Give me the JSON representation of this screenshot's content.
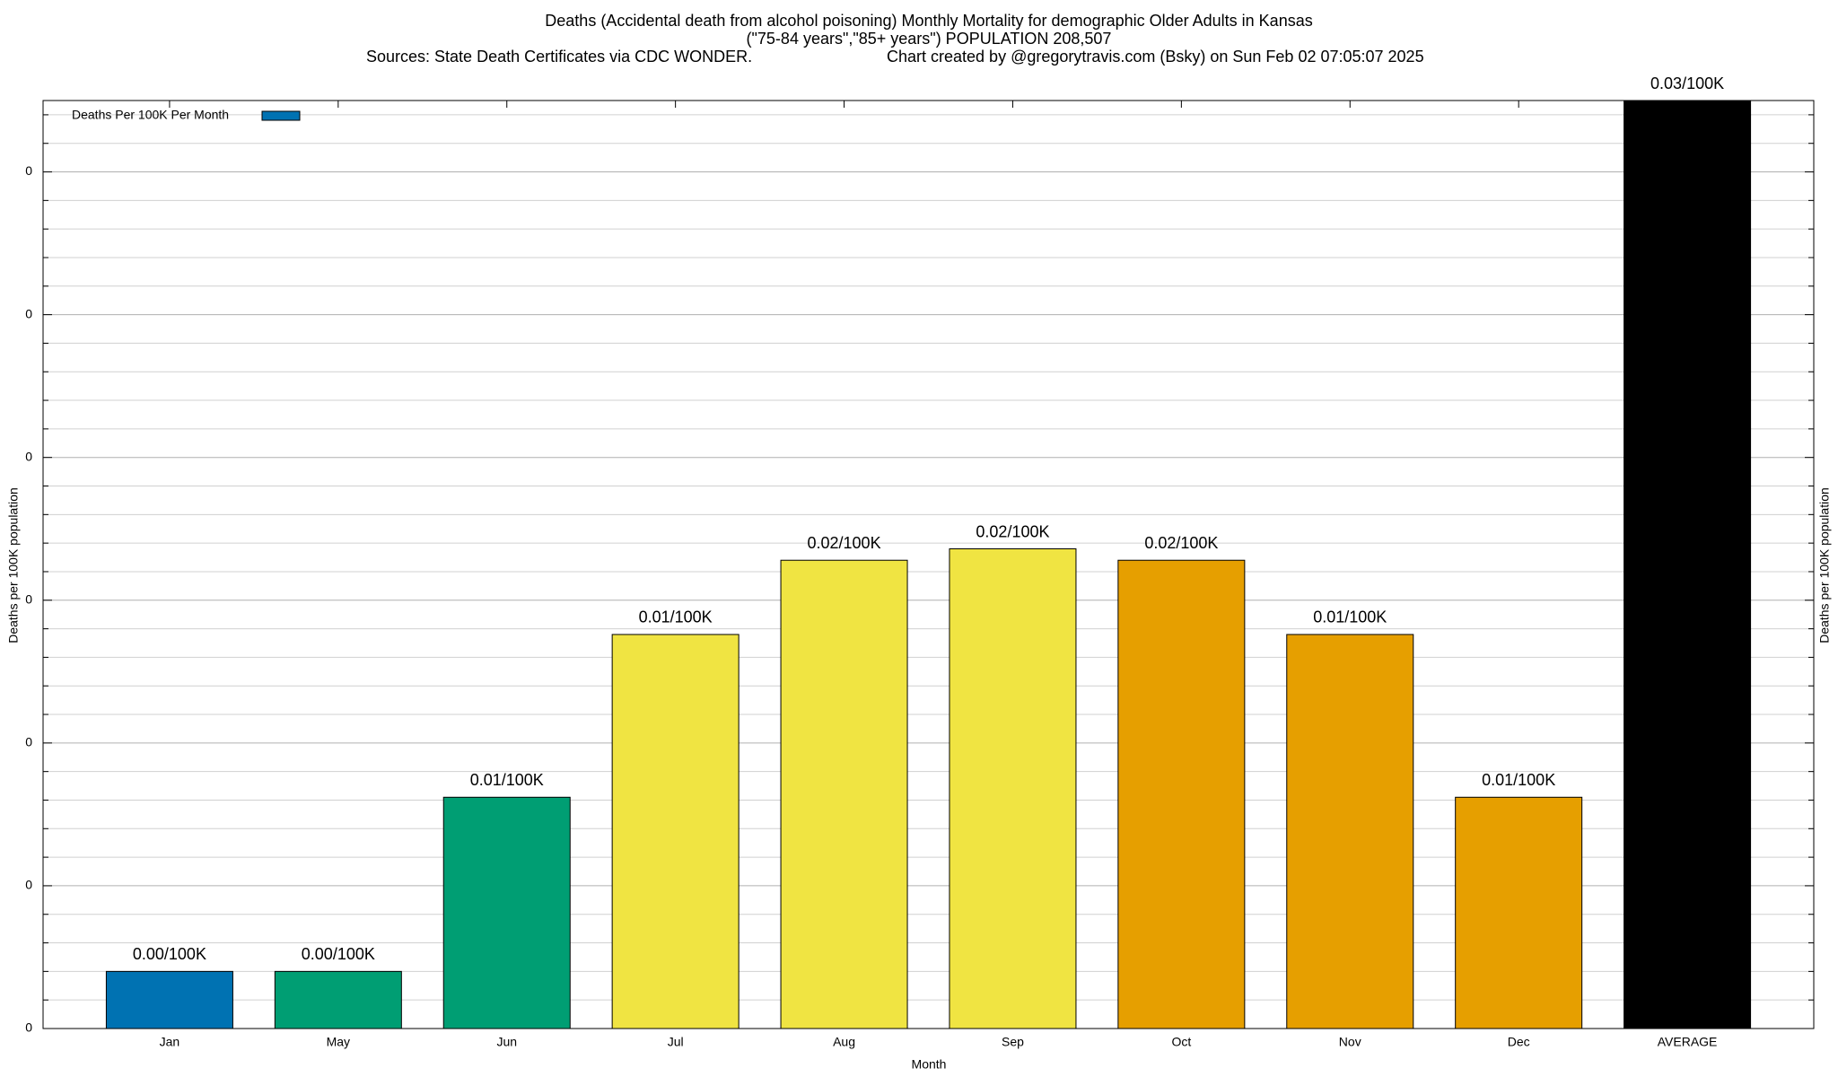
{
  "chart_data": {
    "type": "bar",
    "title": "Deaths (Accidental death from alcohol poisoning) Monthly Mortality for demographic Older Adults in Kansas",
    "subtitle": "(\"75-84 years\",\"85+ years\") POPULATION 208,507",
    "source": "Sources: State Death Certificates via CDC WONDER.",
    "credit": "Chart created by @gregorytravis.com (Bsky) on Sun Feb 02 07:05:07 2025",
    "xlabel": "Month",
    "ylabel": "Deaths per 100K population",
    "y2label": "Deaths per 100K population",
    "legend": "top-left",
    "series": [
      {
        "name": "Deaths Per 100K Per Month",
        "color": "#0072b2",
        "categories": [
          "Jan",
          "May",
          "Jun",
          "Jul",
          "Aug",
          "Sep",
          "Oct",
          "Nov",
          "Dec",
          "AVERAGE"
        ],
        "values": [
          0.002,
          0.002,
          0.0081,
          0.0138,
          0.0164,
          0.0168,
          0.0164,
          0.0138,
          0.0081,
          0.0325
        ],
        "value_labels": [
          "0.00/100K",
          "0.00/100K",
          "0.01/100K",
          "0.01/100K",
          "0.02/100K",
          "0.02/100K",
          "0.02/100K",
          "0.01/100K",
          "0.01/100K",
          "0.03/100K"
        ],
        "colors": [
          "#0072b2",
          "#009e73",
          "#009e73",
          "#f0e442",
          "#f0e442",
          "#f0e442",
          "#e69f00",
          "#e69f00",
          "#e69f00",
          "#000000"
        ]
      }
    ],
    "ylim": [
      0,
      0.0325
    ],
    "yticks": [
      {
        "value": 0,
        "label": "0"
      },
      {
        "value": 0.005,
        "label": "0"
      },
      {
        "value": 0.01,
        "label": "0"
      },
      {
        "value": 0.015,
        "label": "0"
      },
      {
        "value": 0.02,
        "label": "0"
      },
      {
        "value": 0.025,
        "label": "0"
      },
      {
        "value": 0.03,
        "label": "0"
      }
    ],
    "yminorticks": [
      0.001,
      0.002,
      0.003,
      0.004,
      0.006,
      0.007,
      0.008,
      0.009,
      0.011,
      0.012,
      0.013,
      0.014,
      0.016,
      0.017,
      0.018,
      0.019,
      0.021,
      0.022,
      0.023,
      0.024,
      0.026,
      0.027,
      0.028,
      0.029,
      0.031,
      0.032
    ],
    "grid": true
  }
}
